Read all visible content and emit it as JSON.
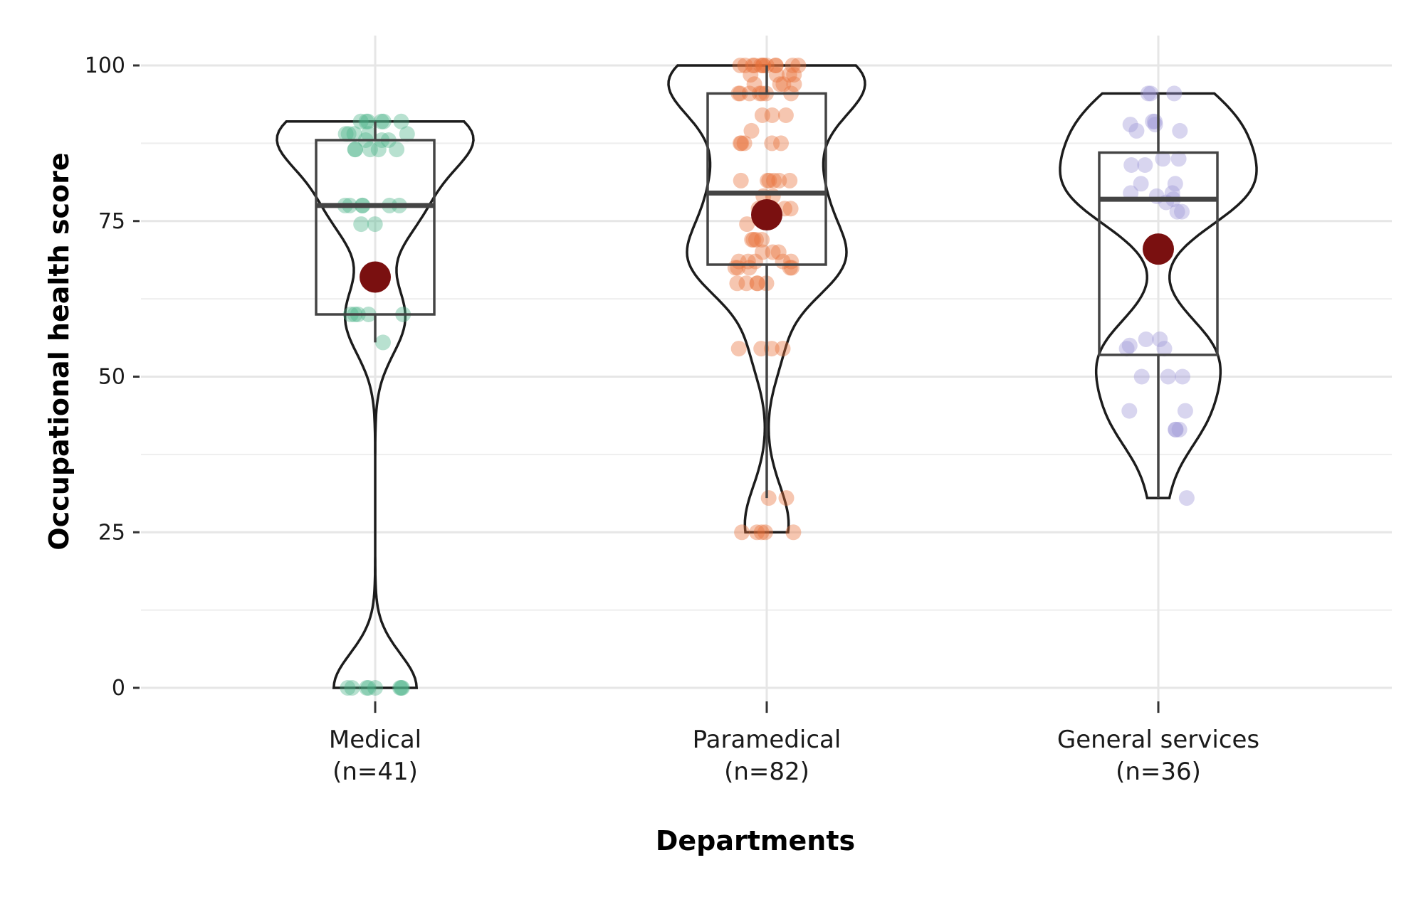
{
  "chart_data": {
    "type": "violin",
    "xlabel": "Departments",
    "ylabel": "Occupational health score",
    "ylim": [
      -3,
      105
    ],
    "yticks": [
      0,
      25,
      50,
      75,
      100
    ],
    "grid": true,
    "legend": "none",
    "categories": [
      {
        "name": "Medical",
        "n_label": "(n=41)",
        "color": "#4db38a",
        "box": {
          "q1": 60,
          "median": 77.5,
          "q3": 88,
          "whisker_low": 55.5,
          "whisker_high": 91
        },
        "mean": 66,
        "violin_range": [
          0,
          91
        ],
        "points": [
          0,
          0,
          0,
          0,
          0,
          0,
          0,
          0,
          55.5,
          60,
          60,
          60,
          60,
          60,
          74.5,
          74.5,
          77.5,
          77.5,
          77.5,
          77.5,
          77.5,
          77.5,
          86.5,
          86.5,
          86.5,
          86.5,
          86.5,
          88,
          88,
          88,
          89,
          89,
          89,
          89,
          89,
          91,
          91,
          91,
          91,
          91,
          91
        ]
      },
      {
        "name": "Paramedical",
        "n_label": "(n=82)",
        "color": "#e8713a",
        "box": {
          "q1": 68,
          "median": 79.5,
          "q3": 95.5,
          "whisker_low": 30.5,
          "whisker_high": 100
        },
        "mean": 76,
        "violin_range": [
          25,
          100
        ],
        "points": [
          25,
          25,
          25,
          25,
          25,
          30.5,
          30.5,
          54.5,
          54.5,
          54.5,
          54.5,
          65,
          65,
          65,
          65,
          65,
          67.5,
          67.5,
          67.5,
          67.5,
          67.5,
          68.5,
          68.5,
          68.5,
          68.5,
          68.5,
          70,
          70,
          70,
          72,
          72,
          72,
          72,
          74.5,
          77,
          77,
          77,
          77,
          79,
          79,
          81.5,
          81.5,
          81.5,
          81.5,
          81.5,
          81.5,
          87.5,
          87.5,
          87.5,
          87.5,
          87.5,
          89.5,
          92,
          92,
          92,
          95.5,
          95.5,
          95.5,
          95.5,
          95.5,
          95.5,
          95.5,
          97,
          97,
          97,
          97,
          98.5,
          98.5,
          98.5,
          98.5,
          100,
          100,
          100,
          100,
          100,
          100,
          100,
          100,
          100,
          100,
          100,
          100
        ]
      },
      {
        "name": "General services",
        "n_label": "(n=36)",
        "color": "#9e95d6",
        "box": {
          "q1": 53.5,
          "median": 78.5,
          "q3": 86,
          "whisker_low": 30.5,
          "whisker_high": 95.5
        },
        "mean": 70.5,
        "violin_range": [
          30.5,
          95.5
        ],
        "points": [
          30.5,
          41.5,
          41.5,
          41.5,
          44.5,
          44.5,
          50,
          50,
          50,
          54.5,
          54.5,
          55,
          56,
          56,
          76.5,
          76.5,
          78,
          78.5,
          79,
          79.5,
          79.5,
          81,
          81,
          84,
          84,
          85,
          85,
          89.5,
          89.5,
          90.5,
          90.5,
          91,
          91,
          95.5,
          95.5,
          95.5
        ]
      }
    ]
  }
}
